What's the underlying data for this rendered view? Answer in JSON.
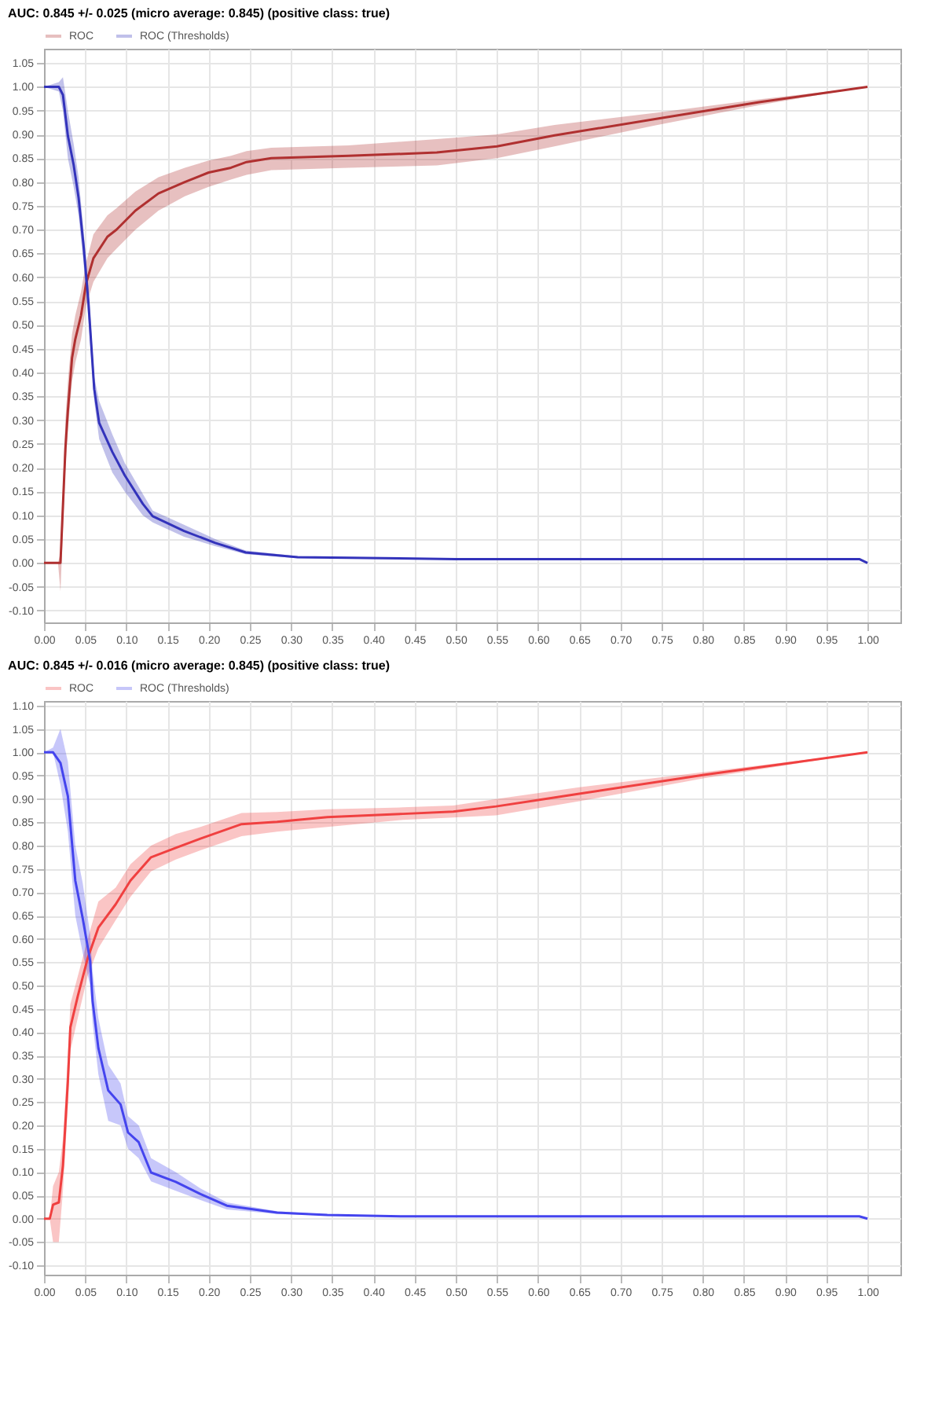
{
  "chart_data": [
    {
      "type": "line",
      "title": "AUC: 0.845 +/- 0.025 (micro average: 0.845) (positive class: true)",
      "legend": "top left",
      "grid": true,
      "marker": "none",
      "line_style": "solid",
      "xlim": [
        0,
        1.04
      ],
      "ylim": [
        -0.125,
        1.08
      ],
      "xticks": [
        {
          "value": 0,
          "label": "0.00"
        },
        {
          "value": 0.05,
          "label": "0.05"
        },
        {
          "value": 0.1,
          "label": "0.10"
        },
        {
          "value": 0.15,
          "label": "0.15"
        },
        {
          "value": 0.2,
          "label": "0.20"
        },
        {
          "value": 0.25,
          "label": "0.25"
        },
        {
          "value": 0.3,
          "label": "0.30"
        },
        {
          "value": 0.35,
          "label": "0.35"
        },
        {
          "value": 0.4,
          "label": "0.40"
        },
        {
          "value": 0.45,
          "label": "0.45"
        },
        {
          "value": 0.5,
          "label": "0.50"
        },
        {
          "value": 0.55,
          "label": "0.55"
        },
        {
          "value": 0.6,
          "label": "0.60"
        },
        {
          "value": 0.65,
          "label": "0.65"
        },
        {
          "value": 0.7,
          "label": "0.70"
        },
        {
          "value": 0.75,
          "label": "0.75"
        },
        {
          "value": 0.8,
          "label": "0.80"
        },
        {
          "value": 0.85,
          "label": "0.85"
        },
        {
          "value": 0.9,
          "label": "0.90"
        },
        {
          "value": 0.95,
          "label": "0.95"
        },
        {
          "value": 1,
          "label": "1.00"
        }
      ],
      "yticks": [
        {
          "value": -0.1,
          "label": "-0.10"
        },
        {
          "value": -0.05,
          "label": "-0.05"
        },
        {
          "value": 0,
          "label": "0.00"
        },
        {
          "value": 0.05,
          "label": "0.05"
        },
        {
          "value": 0.1,
          "label": "0.10"
        },
        {
          "value": 0.15,
          "label": "0.15"
        },
        {
          "value": 0.2,
          "label": "0.20"
        },
        {
          "value": 0.25,
          "label": "0.25"
        },
        {
          "value": 0.3,
          "label": "0.30"
        },
        {
          "value": 0.35,
          "label": "0.35"
        },
        {
          "value": 0.4,
          "label": "0.40"
        },
        {
          "value": 0.45,
          "label": "0.45"
        },
        {
          "value": 0.5,
          "label": "0.50"
        },
        {
          "value": 0.55,
          "label": "0.55"
        },
        {
          "value": 0.6,
          "label": "0.60"
        },
        {
          "value": 0.65,
          "label": "0.65"
        },
        {
          "value": 0.7,
          "label": "0.70"
        },
        {
          "value": 0.75,
          "label": "0.75"
        },
        {
          "value": 0.8,
          "label": "0.80"
        },
        {
          "value": 0.85,
          "label": "0.85"
        },
        {
          "value": 0.9,
          "label": "0.90"
        },
        {
          "value": 0.95,
          "label": "0.95"
        },
        {
          "value": 1,
          "label": "1.00"
        },
        {
          "value": 1.05,
          "label": "1.05"
        }
      ],
      "series": [
        {
          "name": "ROC",
          "color": "#b03030",
          "x": [
            0,
            0.017,
            0.02,
            0.026,
            0.029,
            0.034,
            0.038,
            0.045,
            0.051,
            0.06,
            0.077,
            0.088,
            0.111,
            0.139,
            0.171,
            0.2,
            0.227,
            0.246,
            0.276,
            0.37,
            0.477,
            0.55,
            0.62,
            0.745,
            0.87,
            1.0
          ],
          "values": [
            0,
            0,
            0,
            0.24,
            0.32,
            0.43,
            0.47,
            0.52,
            0.586,
            0.64,
            0.685,
            0.7,
            0.74,
            0.776,
            0.8,
            0.82,
            0.83,
            0.842,
            0.85,
            0.855,
            0.862,
            0.875,
            0.898,
            0.933,
            0.968,
            1.0
          ],
          "lower": [
            0,
            0,
            -0.06,
            0.2,
            0.28,
            0.38,
            0.42,
            0.47,
            0.54,
            0.59,
            0.64,
            0.66,
            0.7,
            0.74,
            0.77,
            0.79,
            0.805,
            0.815,
            0.825,
            0.83,
            0.835,
            0.85,
            0.875,
            0.92,
            0.962,
            1.0
          ],
          "upper": [
            0,
            0,
            0.02,
            0.3,
            0.38,
            0.48,
            0.52,
            0.57,
            0.63,
            0.69,
            0.73,
            0.745,
            0.78,
            0.81,
            0.83,
            0.845,
            0.855,
            0.865,
            0.872,
            0.877,
            0.89,
            0.9,
            0.92,
            0.946,
            0.974,
            1.0
          ]
        },
        {
          "name": "ROC (Thresholds)",
          "color": "#3333bb",
          "x": [
            0,
            0.018,
            0.023,
            0.029,
            0.036,
            0.042,
            0.048,
            0.054,
            0.061,
            0.067,
            0.083,
            0.098,
            0.12,
            0.132,
            0.17,
            0.208,
            0.245,
            0.308,
            0.5,
            0.99,
            1.0
          ],
          "values": [
            1,
            1,
            0.983,
            0.897,
            0.836,
            0.767,
            0.667,
            0.546,
            0.365,
            0.294,
            0.233,
            0.184,
            0.124,
            0.098,
            0.067,
            0.042,
            0.022,
            0.012,
            0.008,
            0.008,
            0
          ],
          "lower": [
            1,
            0.99,
            0.95,
            0.85,
            0.79,
            0.73,
            0.63,
            0.51,
            0.34,
            0.26,
            0.19,
            0.15,
            0.1,
            0.085,
            0.055,
            0.035,
            0.018,
            0.01,
            0.007,
            0.007,
            0
          ],
          "upper": [
            1,
            1.01,
            1.02,
            0.95,
            0.88,
            0.81,
            0.7,
            0.58,
            0.39,
            0.34,
            0.27,
            0.21,
            0.145,
            0.11,
            0.08,
            0.05,
            0.026,
            0.014,
            0.009,
            0.009,
            0
          ]
        }
      ]
    },
    {
      "type": "line",
      "title": "AUC: 0.845 +/- 0.016 (micro average: 0.845) (positive class: true)",
      "legend": "top left",
      "grid": true,
      "marker": "none",
      "line_style": "solid",
      "xlim": [
        0,
        1.04
      ],
      "ylim": [
        -0.12,
        1.11
      ],
      "xticks": [
        {
          "value": 0,
          "label": "0.00"
        },
        {
          "value": 0.05,
          "label": "0.05"
        },
        {
          "value": 0.1,
          "label": "0.10"
        },
        {
          "value": 0.15,
          "label": "0.15"
        },
        {
          "value": 0.2,
          "label": "0.20"
        },
        {
          "value": 0.25,
          "label": "0.25"
        },
        {
          "value": 0.3,
          "label": "0.30"
        },
        {
          "value": 0.35,
          "label": "0.35"
        },
        {
          "value": 0.4,
          "label": "0.40"
        },
        {
          "value": 0.45,
          "label": "0.45"
        },
        {
          "value": 0.5,
          "label": "0.50"
        },
        {
          "value": 0.55,
          "label": "0.55"
        },
        {
          "value": 0.6,
          "label": "0.60"
        },
        {
          "value": 0.65,
          "label": "0.65"
        },
        {
          "value": 0.7,
          "label": "0.70"
        },
        {
          "value": 0.75,
          "label": "0.75"
        },
        {
          "value": 0.8,
          "label": "0.80"
        },
        {
          "value": 0.85,
          "label": "0.85"
        },
        {
          "value": 0.9,
          "label": "0.90"
        },
        {
          "value": 0.95,
          "label": "0.95"
        },
        {
          "value": 1,
          "label": "1.00"
        }
      ],
      "yticks": [
        {
          "value": -0.1,
          "label": "-0.10"
        },
        {
          "value": -0.05,
          "label": "-0.05"
        },
        {
          "value": 0,
          "label": "0.00"
        },
        {
          "value": 0.05,
          "label": "0.05"
        },
        {
          "value": 0.1,
          "label": "0.10"
        },
        {
          "value": 0.15,
          "label": "0.15"
        },
        {
          "value": 0.2,
          "label": "0.20"
        },
        {
          "value": 0.25,
          "label": "0.25"
        },
        {
          "value": 0.3,
          "label": "0.30"
        },
        {
          "value": 0.35,
          "label": "0.35"
        },
        {
          "value": 0.4,
          "label": "0.40"
        },
        {
          "value": 0.45,
          "label": "0.45"
        },
        {
          "value": 0.5,
          "label": "0.50"
        },
        {
          "value": 0.55,
          "label": "0.55"
        },
        {
          "value": 0.6,
          "label": "0.60"
        },
        {
          "value": 0.65,
          "label": "0.65"
        },
        {
          "value": 0.7,
          "label": "0.70"
        },
        {
          "value": 0.75,
          "label": "0.75"
        },
        {
          "value": 0.8,
          "label": "0.80"
        },
        {
          "value": 0.85,
          "label": "0.85"
        },
        {
          "value": 0.9,
          "label": "0.90"
        },
        {
          "value": 0.95,
          "label": "0.95"
        },
        {
          "value": 1,
          "label": "1.00"
        },
        {
          "value": 1.05,
          "label": "1.05"
        },
        {
          "value": 1.1,
          "label": "1.10"
        }
      ],
      "series": [
        {
          "name": "ROC",
          "color": "#f04040",
          "x": [
            0,
            0.007,
            0.011,
            0.018,
            0.023,
            0.029,
            0.032,
            0.041,
            0.053,
            0.066,
            0.087,
            0.105,
            0.13,
            0.16,
            0.19,
            0.24,
            0.283,
            0.344,
            0.436,
            0.497,
            0.549,
            0.65,
            0.803,
            1.0
          ],
          "values": [
            0,
            0,
            0.03,
            0.035,
            0.114,
            0.295,
            0.41,
            0.477,
            0.558,
            0.624,
            0.674,
            0.725,
            0.775,
            0.795,
            0.815,
            0.846,
            0.851,
            0.861,
            0.868,
            0.873,
            0.884,
            0.911,
            0.952,
            1.0
          ],
          "lower": [
            0,
            0,
            -0.05,
            -0.05,
            0.06,
            0.24,
            0.36,
            0.43,
            0.52,
            0.58,
            0.64,
            0.69,
            0.745,
            0.77,
            0.79,
            0.82,
            0.83,
            0.84,
            0.855,
            0.86,
            0.865,
            0.895,
            0.945,
            1.0
          ],
          "upper": [
            0,
            0,
            0.07,
            0.1,
            0.17,
            0.35,
            0.46,
            0.52,
            0.6,
            0.68,
            0.71,
            0.76,
            0.8,
            0.825,
            0.84,
            0.87,
            0.872,
            0.878,
            0.882,
            0.886,
            0.9,
            0.925,
            0.958,
            1.0
          ]
        },
        {
          "name": "ROC (Thresholds)",
          "color": "#4444ee",
          "x": [
            0,
            0.011,
            0.02,
            0.029,
            0.038,
            0.047,
            0.056,
            0.059,
            0.066,
            0.078,
            0.093,
            0.102,
            0.115,
            0.13,
            0.16,
            0.19,
            0.222,
            0.283,
            0.344,
            0.436,
            0.99,
            1.0
          ],
          "values": [
            1,
            1,
            0.977,
            0.906,
            0.725,
            0.644,
            0.553,
            0.467,
            0.366,
            0.275,
            0.245,
            0.185,
            0.164,
            0.099,
            0.079,
            0.053,
            0.028,
            0.013,
            0.008,
            0.005,
            0.005,
            0
          ],
          "lower": [
            1,
            1,
            0.93,
            0.83,
            0.65,
            0.57,
            0.5,
            0.42,
            0.31,
            0.21,
            0.2,
            0.15,
            0.13,
            0.08,
            0.06,
            0.04,
            0.02,
            0.01,
            0.007,
            0.005,
            0.005,
            0
          ],
          "upper": [
            1,
            1.01,
            1.05,
            0.98,
            0.8,
            0.72,
            0.61,
            0.53,
            0.43,
            0.33,
            0.29,
            0.22,
            0.2,
            0.13,
            0.1,
            0.065,
            0.035,
            0.016,
            0.009,
            0.006,
            0.005,
            0
          ]
        }
      ]
    }
  ]
}
